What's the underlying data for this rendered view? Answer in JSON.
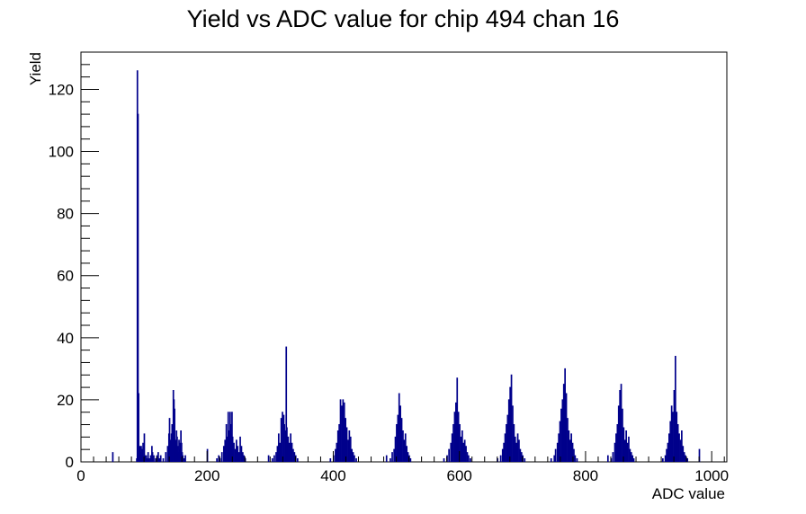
{
  "chart_data": {
    "type": "histogram",
    "title": "Yield vs ADC value for chip 494 chan 16",
    "xlabel": "ADC value",
    "ylabel": "Yield",
    "xlim": [
      0,
      1024
    ],
    "ylim": [
      0,
      132
    ],
    "x_major_ticks": [
      0,
      200,
      400,
      600,
      800,
      1000
    ],
    "y_major_ticks": [
      0,
      20,
      40,
      60,
      80,
      100,
      120
    ],
    "x_tick_labels": [
      "0",
      "200",
      "400",
      "600",
      "800",
      "1000"
    ],
    "y_tick_labels": [
      "0",
      "20",
      "40",
      "60",
      "80",
      "100",
      "120"
    ],
    "line_color": "#00008b",
    "bin_width": 1,
    "bins": [
      [
        50,
        3
      ],
      [
        88,
        1
      ],
      [
        89,
        126
      ],
      [
        90,
        112
      ],
      [
        91,
        22
      ],
      [
        92,
        1
      ],
      [
        93,
        5
      ],
      [
        94,
        3
      ],
      [
        95,
        5
      ],
      [
        96,
        2
      ],
      [
        97,
        4
      ],
      [
        98,
        6
      ],
      [
        99,
        1
      ],
      [
        100,
        9
      ],
      [
        101,
        2
      ],
      [
        103,
        2
      ],
      [
        104,
        1
      ],
      [
        106,
        3
      ],
      [
        108,
        1
      ],
      [
        110,
        2
      ],
      [
        112,
        5
      ],
      [
        113,
        3
      ],
      [
        115,
        2
      ],
      [
        118,
        1
      ],
      [
        120,
        2
      ],
      [
        122,
        3
      ],
      [
        124,
        1
      ],
      [
        126,
        2
      ],
      [
        130,
        1
      ],
      [
        134,
        3
      ],
      [
        137,
        5
      ],
      [
        139,
        9
      ],
      [
        140,
        14
      ],
      [
        141,
        7
      ],
      [
        142,
        5
      ],
      [
        143,
        9
      ],
      [
        144,
        12
      ],
      [
        145,
        6
      ],
      [
        146,
        23
      ],
      [
        147,
        20
      ],
      [
        148,
        17
      ],
      [
        149,
        7
      ],
      [
        150,
        5
      ],
      [
        151,
        10
      ],
      [
        152,
        8
      ],
      [
        153,
        5
      ],
      [
        154,
        3
      ],
      [
        155,
        7
      ],
      [
        156,
        4
      ],
      [
        157,
        6
      ],
      [
        158,
        10
      ],
      [
        159,
        6
      ],
      [
        160,
        3
      ],
      [
        161,
        2
      ],
      [
        163,
        1
      ],
      [
        165,
        2
      ],
      [
        200,
        4
      ],
      [
        215,
        1
      ],
      [
        218,
        2
      ],
      [
        220,
        1
      ],
      [
        223,
        3
      ],
      [
        226,
        5
      ],
      [
        228,
        7
      ],
      [
        230,
        12
      ],
      [
        232,
        8
      ],
      [
        233,
        16
      ],
      [
        234,
        10
      ],
      [
        235,
        6
      ],
      [
        236,
        16
      ],
      [
        237,
        12
      ],
      [
        238,
        9
      ],
      [
        239,
        16
      ],
      [
        240,
        8
      ],
      [
        242,
        6
      ],
      [
        244,
        4
      ],
      [
        246,
        7
      ],
      [
        248,
        5
      ],
      [
        250,
        3
      ],
      [
        252,
        8
      ],
      [
        254,
        5
      ],
      [
        256,
        3
      ],
      [
        258,
        2
      ],
      [
        260,
        1
      ],
      [
        297,
        2
      ],
      [
        303,
        1
      ],
      [
        306,
        2
      ],
      [
        309,
        3
      ],
      [
        311,
        5
      ],
      [
        313,
        9
      ],
      [
        315,
        6
      ],
      [
        317,
        14
      ],
      [
        319,
        16
      ],
      [
        321,
        15
      ],
      [
        322,
        12
      ],
      [
        324,
        10
      ],
      [
        325,
        37
      ],
      [
        326,
        11
      ],
      [
        328,
        8
      ],
      [
        330,
        6
      ],
      [
        332,
        9
      ],
      [
        334,
        6
      ],
      [
        336,
        4
      ],
      [
        338,
        3
      ],
      [
        340,
        2
      ],
      [
        343,
        1
      ],
      [
        395,
        1
      ],
      [
        400,
        2
      ],
      [
        403,
        4
      ],
      [
        405,
        6
      ],
      [
        407,
        10
      ],
      [
        409,
        12
      ],
      [
        411,
        20
      ],
      [
        413,
        18
      ],
      [
        415,
        20
      ],
      [
        417,
        19
      ],
      [
        419,
        14
      ],
      [
        421,
        11
      ],
      [
        423,
        7
      ],
      [
        425,
        10
      ],
      [
        427,
        8
      ],
      [
        429,
        4
      ],
      [
        431,
        3
      ],
      [
        433,
        2
      ],
      [
        436,
        1
      ],
      [
        484,
        2
      ],
      [
        490,
        1
      ],
      [
        493,
        3
      ],
      [
        496,
        4
      ],
      [
        498,
        8
      ],
      [
        500,
        12
      ],
      [
        502,
        15
      ],
      [
        504,
        22
      ],
      [
        506,
        18
      ],
      [
        508,
        14
      ],
      [
        510,
        10
      ],
      [
        512,
        7
      ],
      [
        514,
        9
      ],
      [
        516,
        5
      ],
      [
        518,
        3
      ],
      [
        520,
        2
      ],
      [
        522,
        1
      ],
      [
        575,
        1
      ],
      [
        580,
        2
      ],
      [
        583,
        4
      ],
      [
        586,
        6
      ],
      [
        588,
        9
      ],
      [
        590,
        12
      ],
      [
        592,
        16
      ],
      [
        594,
        19
      ],
      [
        596,
        27
      ],
      [
        598,
        16
      ],
      [
        600,
        12
      ],
      [
        602,
        8
      ],
      [
        604,
        10
      ],
      [
        606,
        6
      ],
      [
        608,
        7
      ],
      [
        610,
        5
      ],
      [
        612,
        3
      ],
      [
        614,
        2
      ],
      [
        617,
        1
      ],
      [
        660,
        1
      ],
      [
        665,
        2
      ],
      [
        668,
        4
      ],
      [
        670,
        6
      ],
      [
        672,
        9
      ],
      [
        674,
        12
      ],
      [
        676,
        15
      ],
      [
        678,
        20
      ],
      [
        680,
        24
      ],
      [
        682,
        28
      ],
      [
        684,
        18
      ],
      [
        686,
        12
      ],
      [
        688,
        8
      ],
      [
        690,
        6
      ],
      [
        692,
        9
      ],
      [
        694,
        7
      ],
      [
        696,
        4
      ],
      [
        698,
        3
      ],
      [
        700,
        2
      ],
      [
        703,
        1
      ],
      [
        745,
        1
      ],
      [
        750,
        2
      ],
      [
        752,
        4
      ],
      [
        755,
        6
      ],
      [
        757,
        9
      ],
      [
        759,
        13
      ],
      [
        761,
        17
      ],
      [
        763,
        20
      ],
      [
        765,
        25
      ],
      [
        767,
        30
      ],
      [
        769,
        22
      ],
      [
        771,
        14
      ],
      [
        773,
        10
      ],
      [
        775,
        7
      ],
      [
        777,
        9
      ],
      [
        779,
        6
      ],
      [
        781,
        4
      ],
      [
        783,
        2
      ],
      [
        786,
        1
      ],
      [
        835,
        2
      ],
      [
        840,
        1
      ],
      [
        843,
        3
      ],
      [
        846,
        6
      ],
      [
        848,
        9
      ],
      [
        850,
        12
      ],
      [
        852,
        18
      ],
      [
        854,
        23
      ],
      [
        856,
        25
      ],
      [
        858,
        17
      ],
      [
        860,
        11
      ],
      [
        862,
        7
      ],
      [
        864,
        10
      ],
      [
        866,
        6
      ],
      [
        868,
        8
      ],
      [
        870,
        4
      ],
      [
        872,
        3
      ],
      [
        874,
        2
      ],
      [
        876,
        1
      ],
      [
        922,
        1
      ],
      [
        926,
        2
      ],
      [
        928,
        4
      ],
      [
        930,
        6
      ],
      [
        932,
        9
      ],
      [
        934,
        13
      ],
      [
        936,
        18
      ],
      [
        938,
        16
      ],
      [
        940,
        23
      ],
      [
        942,
        34
      ],
      [
        944,
        16
      ],
      [
        946,
        12
      ],
      [
        948,
        9
      ],
      [
        950,
        7
      ],
      [
        952,
        10
      ],
      [
        954,
        5
      ],
      [
        956,
        3
      ],
      [
        958,
        2
      ],
      [
        961,
        1
      ],
      [
        980,
        4
      ]
    ]
  }
}
